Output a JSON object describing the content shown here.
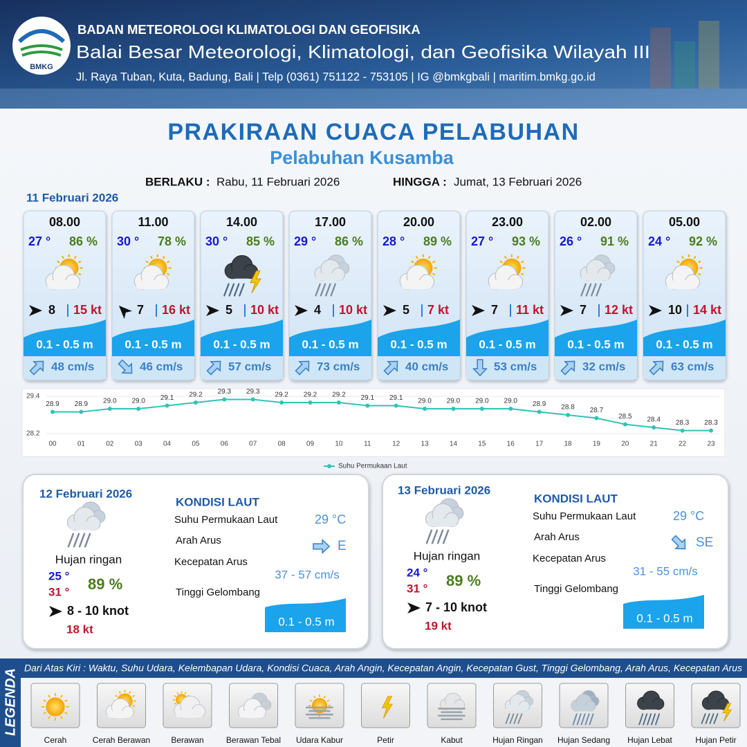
{
  "header": {
    "logo": "BMKG",
    "agency": "BADAN METEOROLOGI KLIMATOLOGI DAN GEOFISIKA",
    "office": "Balai Besar Meteorologi, Klimatologi, dan Geofisika Wilayah III",
    "address": "Jl. Raya Tuban, Kuta, Badung, Bali | Telp (0361) 751122 - 753105 | IG @bmkgbali | maritim.bmkg.go.id"
  },
  "title": "PRAKIRAAN CUACA PELABUHAN",
  "subtitle": "Pelabuhan Kusamba",
  "validity": {
    "from_label": "BERLAKU :",
    "from": "Rabu, 11 Februari 2026",
    "to_label": "HINGGA :",
    "to": "Jumat, 13 Februari 2026"
  },
  "day1": {
    "date": "11 Februari 2026",
    "hours": [
      {
        "time": "08.00",
        "temp": "27 °",
        "humidity": "86 %",
        "weather": "Cerah Berawan",
        "wind_dir_deg": 0,
        "wind": "8",
        "gust": "15 kt",
        "wave": "0.1 - 0.5 m",
        "current_dir_deg": -45,
        "current": "48 cm/s"
      },
      {
        "time": "11.00",
        "temp": "30 °",
        "humidity": "78 %",
        "weather": "Cerah Berawan",
        "wind_dir_deg": -135,
        "wind": "7",
        "gust": "16 kt",
        "wave": "0.1 - 0.5 m",
        "current_dir_deg": 45,
        "current": "46 cm/s"
      },
      {
        "time": "14.00",
        "temp": "30 °",
        "humidity": "85 %",
        "weather": "Hujan Petir",
        "wind_dir_deg": 0,
        "wind": "5",
        "gust": "10 kt",
        "wave": "0.1 - 0.5 m",
        "current_dir_deg": -45,
        "current": "57 cm/s"
      },
      {
        "time": "17.00",
        "temp": "29 °",
        "humidity": "86 %",
        "weather": "Hujan Ringan",
        "wind_dir_deg": 0,
        "wind": "4",
        "gust": "10 kt",
        "wave": "0.1 - 0.5 m",
        "current_dir_deg": -45,
        "current": "73 cm/s"
      },
      {
        "time": "20.00",
        "temp": "28 °",
        "humidity": "89 %",
        "weather": "Cerah Berawan",
        "wind_dir_deg": 0,
        "wind": "5",
        "gust": "7 kt",
        "wave": "0.1 - 0.5 m",
        "current_dir_deg": -45,
        "current": "40 cm/s"
      },
      {
        "time": "23.00",
        "temp": "27 °",
        "humidity": "93 %",
        "weather": "Cerah Berawan",
        "wind_dir_deg": 0,
        "wind": "7",
        "gust": "11 kt",
        "wave": "0.1 - 0.5 m",
        "current_dir_deg": 90,
        "current": "53 cm/s"
      },
      {
        "time": "02.00",
        "temp": "26 °",
        "humidity": "91 %",
        "weather": "Hujan Ringan",
        "wind_dir_deg": 0,
        "wind": "7",
        "gust": "12 kt",
        "wave": "0.1 - 0.5 m",
        "current_dir_deg": -45,
        "current": "32 cm/s"
      },
      {
        "time": "05.00",
        "temp": "24 °",
        "humidity": "92 %",
        "weather": "Cerah Berawan",
        "wind_dir_deg": 0,
        "wind": "10",
        "gust": "14 kt",
        "wave": "0.1 - 0.5 m",
        "current_dir_deg": -45,
        "current": "63 cm/s"
      }
    ]
  },
  "chart_data": {
    "type": "line",
    "categories": [
      "00",
      "01",
      "02",
      "03",
      "04",
      "05",
      "06",
      "07",
      "08",
      "09",
      "10",
      "11",
      "12",
      "13",
      "14",
      "15",
      "16",
      "17",
      "18",
      "19",
      "20",
      "21",
      "22",
      "23"
    ],
    "values": [
      28.9,
      28.9,
      29.0,
      29.0,
      29.1,
      29.2,
      29.3,
      29.3,
      29.2,
      29.2,
      29.2,
      29.1,
      29.1,
      29.0,
      29.0,
      29.0,
      29.0,
      28.9,
      28.8,
      28.7,
      28.5,
      28.4,
      28.3,
      28.3
    ],
    "value_labels": [
      "28.9",
      "28.9",
      "29.0",
      "29.0",
      "29.1",
      "29.2",
      "29.3",
      "29.3",
      "29.2",
      "29.2",
      "29.2",
      "29.1",
      "29.1",
      "29.0",
      "29.0",
      "29.0",
      "29.0",
      "28.9",
      "28.8",
      "28.7",
      "28.5",
      "28.4",
      "28.3",
      "28.3"
    ],
    "series_name": "Suhu Permukaan Laut",
    "color": "#2ec4b6",
    "ylim": [
      28.2,
      29.4
    ],
    "yticks": [
      28.2,
      29.4
    ]
  },
  "days": [
    {
      "date": "12 Februari 2026",
      "weather": "Hujan ringan",
      "icon": "Hujan Ringan",
      "temp_min": "25 °",
      "temp_max": "31 °",
      "humidity": "89 %",
      "wind": "8  - 10 knot",
      "gust": "18 kt",
      "sea_title": "KONDISI LAUT",
      "sst_label": "Suhu Permukaan Laut",
      "sst": "29 °C",
      "current_dir_label": "Arah Arus",
      "current_dir": "E",
      "current_dir_deg": 0,
      "current_speed_label": "Kecepatan Arus",
      "current_speed": "37 - 57 cm/s",
      "wave_label": "Tinggi Gelombang",
      "wave": "0.1 - 0.5 m"
    },
    {
      "date": "13 Februari 2026",
      "weather": "Hujan ringan",
      "icon": "Hujan Ringan",
      "temp_min": "24 °",
      "temp_max": "31 °",
      "humidity": "89 %",
      "wind": "7  - 10 knot",
      "gust": "19 kt",
      "sea_title": "KONDISI LAUT",
      "sst_label": "Suhu Permukaan Laut",
      "sst": "29 °C",
      "current_dir_label": "Arah Arus",
      "current_dir": "SE",
      "current_dir_deg": 45,
      "current_speed_label": "Kecepatan Arus",
      "current_speed": "31 - 55 cm/s",
      "wave_label": "Tinggi Gelombang",
      "wave": "0.1 - 0.5 m"
    }
  ],
  "legend": {
    "title": "LEGENDA",
    "description": "Dari Atas Kiri : Waktu, Suhu Udara, Kelembapan Udara, Kondisi Cuaca, Arah Angin, Kecepatan Angin, Kecepatan Gust, Tinggi Gelombang, Arah Arus, Kecepatan Arus",
    "items": [
      "Cerah",
      "Cerah Berawan",
      "Berawan",
      "Berawan Tebal",
      "Udara Kabur",
      "Petir",
      "Kabut",
      "Hujan Ringan",
      "Hujan Sedang",
      "Hujan Lebat",
      "Hujan Petir"
    ]
  }
}
